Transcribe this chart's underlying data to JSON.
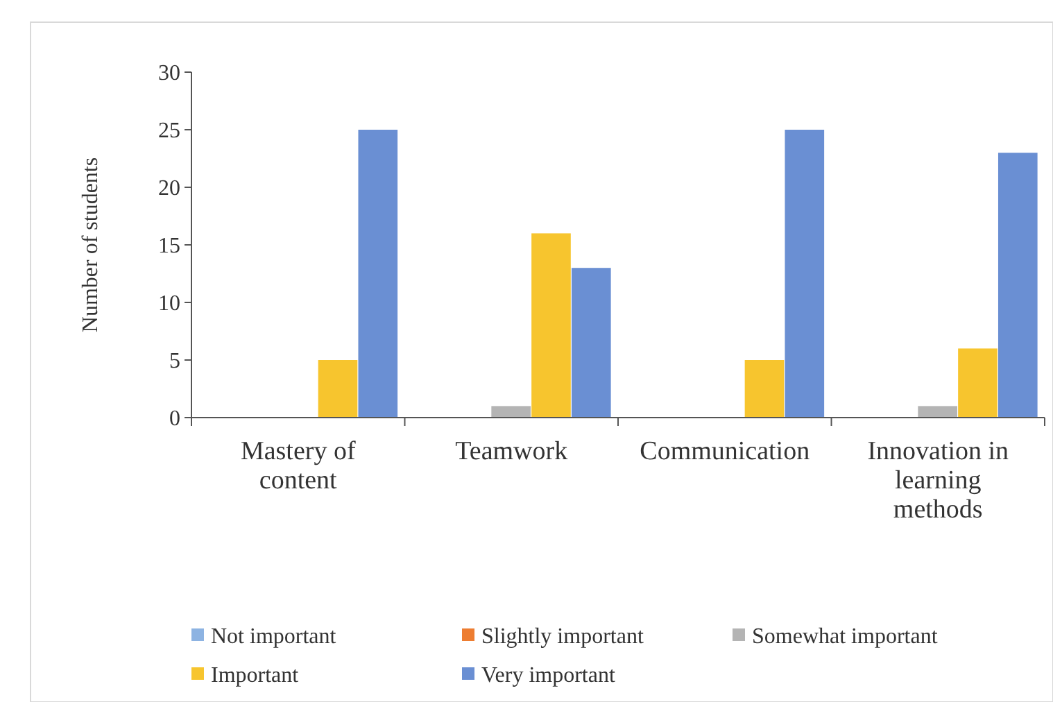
{
  "chart_data": {
    "type": "bar",
    "ylabel": "Number of students",
    "categories": [
      "Mastery of content",
      "Teamwork",
      "Communication",
      "Innovation in learning methods"
    ],
    "series": [
      {
        "name": "Not important",
        "color": "#8db3e2",
        "values": [
          0,
          0,
          0,
          0
        ]
      },
      {
        "name": "Slightly important",
        "color": "#ed7d31",
        "values": [
          0,
          0,
          0,
          0
        ]
      },
      {
        "name": "Somewhat important",
        "color": "#b4b4b4",
        "values": [
          0,
          1,
          0,
          1
        ]
      },
      {
        "name": "Important",
        "color": "#f7c52e",
        "values": [
          5,
          16,
          5,
          6
        ]
      },
      {
        "name": "Very important",
        "color": "#6a8fd3",
        "values": [
          25,
          13,
          25,
          23
        ]
      }
    ],
    "ylim": [
      0,
      30
    ],
    "yticks": [
      0,
      5,
      10,
      15,
      20,
      25,
      30
    ],
    "grid": false,
    "legend": "bottom"
  }
}
